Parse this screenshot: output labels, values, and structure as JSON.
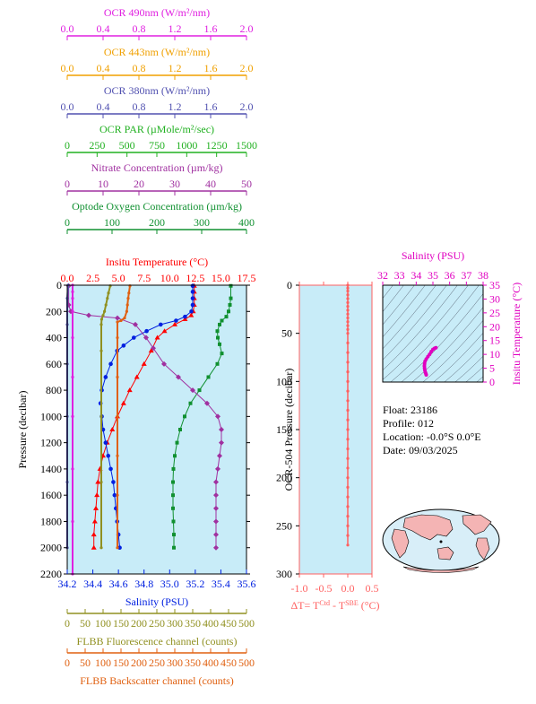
{
  "colors": {
    "ocr490": "#e020e0",
    "ocr443": "#f0a000",
    "ocr380": "#5050b0",
    "par": "#20b020",
    "nitrate": "#a030a0",
    "oxygen": "#109030",
    "temperature": "#ff0000",
    "salinity": "#0020e0",
    "fluorescence": "#909020",
    "backscatter": "#e06010",
    "dt": "#ff6060",
    "plot_bg": "#c8ecf8",
    "ts_magenta": "#e000c0",
    "axis_black": "#000000"
  },
  "chart_data": [
    {
      "type": "line",
      "panel": "main-profile",
      "ylabel": "Pressure (decibar)",
      "y_ticks": [
        0,
        200,
        400,
        600,
        800,
        1000,
        1200,
        1400,
        1600,
        1800,
        2000,
        2200
      ],
      "ylim": [
        2200,
        0
      ],
      "top_axes": [
        {
          "key": "ocr490",
          "label": "OCR 490nm (W/m²/nm)",
          "ticks": [
            "0.0",
            "0.4",
            "0.8",
            "1.2",
            "1.6",
            "2.0"
          ],
          "range": [
            0,
            2
          ]
        },
        {
          "key": "ocr443",
          "label": "OCR 443nm (W/m²/nm)",
          "ticks": [
            "0.0",
            "0.4",
            "0.8",
            "1.2",
            "1.6",
            "2.0"
          ],
          "range": [
            0,
            2
          ]
        },
        {
          "key": "ocr380",
          "label": "OCR 380nm (W/m²/nm)",
          "ticks": [
            "0.0",
            "0.4",
            "0.8",
            "1.2",
            "1.6",
            "2.0"
          ],
          "range": [
            0,
            2
          ]
        },
        {
          "key": "par",
          "label": "OCR PAR (µMole/m²/sec)",
          "ticks": [
            "0",
            "250",
            "500",
            "750",
            "1000",
            "1250",
            "1500"
          ],
          "range": [
            0,
            1500
          ]
        },
        {
          "key": "nitrate",
          "label": "Nitrate Concentration (µm/kg)",
          "ticks": [
            "0",
            "10",
            "20",
            "30",
            "40",
            "50"
          ],
          "range": [
            0,
            50
          ]
        },
        {
          "key": "oxygen",
          "label": "Optode Oxygen Concentration (µm/kg)",
          "ticks": [
            "0",
            "100",
            "200",
            "300",
            "400"
          ],
          "range": [
            0,
            400
          ]
        },
        {
          "key": "temperature",
          "label": "Insitu Temperature (°C)",
          "ticks": [
            "0.0",
            "2.5",
            "5.0",
            "7.5",
            "10.0",
            "12.5",
            "15.0",
            "17.5"
          ],
          "range": [
            0,
            17.5
          ]
        }
      ],
      "bottom_axes": [
        {
          "key": "salinity",
          "label": "Salinity (PSU)",
          "ticks": [
            "34.2",
            "34.4",
            "34.6",
            "34.8",
            "35.0",
            "35.2",
            "35.4",
            "35.6"
          ],
          "range": [
            34.2,
            35.6
          ]
        },
        {
          "key": "fluorescence",
          "label": "FLBB Fluorescence channel (counts)",
          "ticks": [
            "0",
            "50",
            "100",
            "150",
            "200",
            "250",
            "300",
            "350",
            "400",
            "450",
            "500"
          ],
          "range": [
            0,
            500
          ]
        },
        {
          "key": "backscatter",
          "label": "FLBB Backscatter channel (counts)",
          "ticks": [
            "0",
            "50",
            "100",
            "150",
            "200",
            "250",
            "300",
            "350",
            "400",
            "450",
            "500"
          ],
          "range": [
            0,
            500
          ]
        }
      ],
      "series": [
        {
          "key": "temperature",
          "name": "Insitu Temperature",
          "marker": "triangle",
          "points": [
            [
              12.4,
              5
            ],
            [
              12.4,
              50
            ],
            [
              12.4,
              100
            ],
            [
              12.4,
              150
            ],
            [
              12.3,
              200
            ],
            [
              12.1,
              230
            ],
            [
              11.5,
              260
            ],
            [
              10.5,
              300
            ],
            [
              9.5,
              350
            ],
            [
              8.8,
              400
            ],
            [
              8.2,
              500
            ],
            [
              7.5,
              600
            ],
            [
              6.8,
              700
            ],
            [
              6.1,
              800
            ],
            [
              5.5,
              900
            ],
            [
              4.9,
              1000
            ],
            [
              4.4,
              1100
            ],
            [
              3.9,
              1200
            ],
            [
              3.5,
              1300
            ],
            [
              3.2,
              1400
            ],
            [
              3.0,
              1500
            ],
            [
              2.9,
              1600
            ],
            [
              2.8,
              1700
            ],
            [
              2.7,
              1800
            ],
            [
              2.6,
              1900
            ],
            [
              2.6,
              2000
            ]
          ]
        },
        {
          "key": "salinity",
          "name": "Salinity",
          "marker": "circle",
          "points": [
            [
              35.18,
              5
            ],
            [
              35.18,
              50
            ],
            [
              35.18,
              100
            ],
            [
              35.18,
              150
            ],
            [
              35.17,
              200
            ],
            [
              35.12,
              240
            ],
            [
              35.05,
              270
            ],
            [
              34.93,
              300
            ],
            [
              34.82,
              350
            ],
            [
              34.72,
              400
            ],
            [
              34.64,
              460
            ],
            [
              34.59,
              500
            ],
            [
              34.54,
              600
            ],
            [
              34.5,
              700
            ],
            [
              34.47,
              800
            ],
            [
              34.46,
              900
            ],
            [
              34.47,
              1000
            ],
            [
              34.48,
              1100
            ],
            [
              34.5,
              1200
            ],
            [
              34.52,
              1300
            ],
            [
              34.54,
              1400
            ],
            [
              34.56,
              1500
            ],
            [
              34.57,
              1600
            ],
            [
              34.58,
              1700
            ],
            [
              34.59,
              1800
            ],
            [
              34.6,
              1900
            ],
            [
              34.61,
              2000
            ]
          ]
        },
        {
          "key": "oxygen",
          "name": "Optode Oxygen Concentration",
          "marker": "square",
          "points": [
            [
              365,
              5
            ],
            [
              365,
              100
            ],
            [
              363,
              150
            ],
            [
              360,
              200
            ],
            [
              355,
              240
            ],
            [
              345,
              270
            ],
            [
              340,
              300
            ],
            [
              335,
              350
            ],
            [
              336,
              400
            ],
            [
              340,
              450
            ],
            [
              345,
              520
            ],
            [
              335,
              600
            ],
            [
              315,
              700
            ],
            [
              295,
              800
            ],
            [
              275,
              900
            ],
            [
              262,
              1000
            ],
            [
              252,
              1100
            ],
            [
              245,
              1200
            ],
            [
              240,
              1300
            ],
            [
              237,
              1400
            ],
            [
              236,
              1500
            ],
            [
              236,
              1600
            ],
            [
              236,
              1700
            ],
            [
              237,
              1800
            ],
            [
              238,
              1900
            ],
            [
              238,
              2000
            ]
          ]
        },
        {
          "key": "nitrate",
          "name": "Nitrate Concentration",
          "marker": "diamond",
          "points": [
            [
              0.4,
              5
            ],
            [
              0.4,
              150
            ],
            [
              1.0,
              200
            ],
            [
              6,
              230
            ],
            [
              14,
              250
            ],
            [
              19,
              300
            ],
            [
              22,
              400
            ],
            [
              24,
              480
            ],
            [
              27,
              600
            ],
            [
              31,
              700
            ],
            [
              35,
              800
            ],
            [
              39,
              900
            ],
            [
              42,
              1000
            ],
            [
              43,
              1100
            ],
            [
              43,
              1200
            ],
            [
              42.5,
              1300
            ],
            [
              42,
              1400
            ],
            [
              41.5,
              1500
            ],
            [
              41.5,
              1600
            ],
            [
              41.5,
              1700
            ],
            [
              41.5,
              1800
            ],
            [
              41.5,
              1900
            ],
            [
              41.5,
              2000
            ]
          ]
        },
        {
          "key": "fluorescence",
          "name": "FLBB Fluorescence channel",
          "marker": "dot",
          "points": [
            [
              120,
              5
            ],
            [
              115,
              60
            ],
            [
              112,
              100
            ],
            [
              108,
              150
            ],
            [
              104,
              200
            ],
            [
              100,
              230
            ],
            [
              96,
              260
            ],
            [
              95,
              300
            ],
            [
              95,
              500
            ],
            [
              95,
              1000
            ],
            [
              95,
              1500
            ],
            [
              95,
              2000
            ]
          ]
        },
        {
          "key": "backscatter",
          "name": "FLBB Backscatter channel",
          "marker": "dot",
          "points": [
            [
              175,
              5
            ],
            [
              172,
              60
            ],
            [
              170,
              100
            ],
            [
              168,
              150
            ],
            [
              166,
              200
            ],
            [
              160,
              250
            ],
            [
              150,
              270
            ],
            [
              140,
              280
            ],
            [
              140,
              400
            ],
            [
              140,
              700
            ],
            [
              140,
              1000
            ],
            [
              140,
              1300
            ],
            [
              140,
              1600
            ],
            [
              140,
              2000
            ]
          ]
        },
        {
          "key": "ocr380",
          "name": "OCR 380nm",
          "marker": "dot",
          "points": [
            [
              0.01,
              0
            ],
            [
              0.0,
              100
            ],
            [
              0.0,
              300
            ],
            [
              0.0,
              600
            ],
            [
              0.0,
              1000
            ],
            [
              0.0,
              1500
            ],
            [
              0.0,
              2000
            ]
          ]
        },
        {
          "key": "ocr490",
          "name": "OCR 490nm",
          "marker": "dot",
          "points": [
            [
              0.06,
              0
            ],
            [
              0.06,
              50
            ],
            [
              0.06,
              100
            ],
            [
              0.06,
              200
            ],
            [
              0.06,
              400
            ],
            [
              0.06,
              700
            ],
            [
              0.06,
              1000
            ],
            [
              0.06,
              1400
            ],
            [
              0.06,
              1800
            ],
            [
              0.06,
              2200
            ]
          ]
        }
      ]
    },
    {
      "type": "scatter",
      "panel": "delta-t",
      "ylabel": "OCR-504 Pressure (decibar)",
      "xlabel": "ΔT= T^Ctd - T^SBE (°C)",
      "x_ticks": [
        "-1.0",
        "-0.5",
        "0.0",
        "0.5"
      ],
      "xlim": [
        -1.0,
        0.5
      ],
      "y_ticks": [
        "0",
        "50",
        "100",
        "150",
        "200",
        "250",
        "300"
      ],
      "ylim": [
        300,
        0
      ],
      "points": [
        [
          0,
          0
        ],
        [
          0,
          3
        ],
        [
          0,
          6
        ],
        [
          0,
          10
        ],
        [
          0,
          14
        ],
        [
          0,
          18
        ],
        [
          0,
          22
        ],
        [
          0,
          26
        ],
        [
          0,
          30
        ],
        [
          0,
          34
        ],
        [
          0,
          38
        ],
        [
          0,
          42
        ],
        [
          0,
          46
        ],
        [
          0,
          50
        ],
        [
          0,
          60
        ],
        [
          0,
          70
        ],
        [
          0,
          80
        ],
        [
          0,
          90
        ],
        [
          0,
          100
        ],
        [
          0,
          110
        ],
        [
          0,
          120
        ],
        [
          0,
          130
        ],
        [
          0,
          140
        ],
        [
          0,
          150
        ],
        [
          0,
          160
        ],
        [
          0,
          170
        ],
        [
          0,
          180
        ],
        [
          0,
          190
        ],
        [
          0,
          200
        ],
        [
          0,
          210
        ],
        [
          0,
          220
        ],
        [
          0,
          230
        ],
        [
          0,
          240
        ],
        [
          0,
          250
        ],
        [
          0,
          260
        ],
        [
          0,
          270
        ]
      ]
    },
    {
      "type": "scatter",
      "panel": "ts-diagram",
      "xlabel": "Salinity (PSU)",
      "ylabel": "Insitu Temperature (°C)",
      "x_ticks": [
        "32",
        "33",
        "34",
        "35",
        "36",
        "37",
        "38"
      ],
      "xlim": [
        32,
        38
      ],
      "y_ticks": [
        "0",
        "5",
        "10",
        "15",
        "20",
        "25",
        "30",
        "35"
      ],
      "ylim": [
        0,
        35
      ],
      "points": [
        [
          34.6,
          2.6
        ],
        [
          34.58,
          3.0
        ],
        [
          34.55,
          3.5
        ],
        [
          34.52,
          4.2
        ],
        [
          34.5,
          5.0
        ],
        [
          34.49,
          5.8
        ],
        [
          34.5,
          6.6
        ],
        [
          34.53,
          7.5
        ],
        [
          34.6,
          8.3
        ],
        [
          34.7,
          9.2
        ],
        [
          34.8,
          10.0
        ],
        [
          34.9,
          11.0
        ],
        [
          35.0,
          11.8
        ],
        [
          35.1,
          12.2
        ],
        [
          35.18,
          12.4
        ]
      ]
    }
  ],
  "info": {
    "float": "Float:  23186",
    "profile": "Profile:  012",
    "location": "Location:  -0.0°S   0.0°E",
    "date": "Date:  09/03/2025"
  }
}
